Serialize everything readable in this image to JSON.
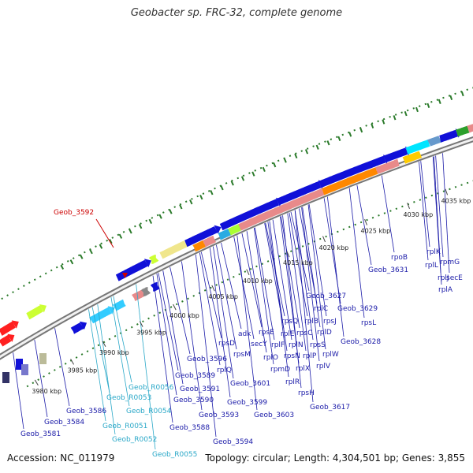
{
  "title": "Geobacter sp. FRC-32, complete genome",
  "accession": "Accession: NC_011979",
  "topology": "Topology: circular; Length: 4,304,501 bp; Genes: 3,855",
  "highlight_label": "Geob_3592",
  "colors": {
    "gene_label": "#1a1aa8",
    "rna_label": "#2aa8c8",
    "highlight": "#cc0000",
    "forward_gene": "#1010d8",
    "ribosomal": "#e88a8a",
    "rpo": "#ff8800",
    "backbone": "#888888",
    "dots": "#2a7a2a"
  },
  "ticks": [
    {
      "label": "3980 kbp"
    },
    {
      "label": "3985 kbp"
    },
    {
      "label": "3990 kbp"
    },
    {
      "label": "3995 kbp"
    },
    {
      "label": "4000 kbp"
    },
    {
      "label": "4005 kbp"
    },
    {
      "label": "4010 kbp"
    },
    {
      "label": "4015 kbp"
    },
    {
      "label": "4020 kbp"
    },
    {
      "label": "4025 kbp"
    },
    {
      "label": "4030 kbp"
    },
    {
      "label": "4035 kbp"
    }
  ],
  "labels": [
    {
      "text": "Geob_3581",
      "kind": "gene"
    },
    {
      "text": "Geob_3584",
      "kind": "gene"
    },
    {
      "text": "Geob_3586",
      "kind": "gene"
    },
    {
      "text": "Geob_R0051",
      "kind": "rna"
    },
    {
      "text": "Geob_R0052",
      "kind": "rna"
    },
    {
      "text": "Geob_R0053",
      "kind": "rna"
    },
    {
      "text": "Geob_R0054",
      "kind": "rna"
    },
    {
      "text": "Geob_R0055",
      "kind": "rna"
    },
    {
      "text": "Geob_R0056",
      "kind": "rna"
    },
    {
      "text": "Geob_3588",
      "kind": "gene"
    },
    {
      "text": "Geob_3589",
      "kind": "gene"
    },
    {
      "text": "Geob_3590",
      "kind": "gene"
    },
    {
      "text": "Geob_3591",
      "kind": "gene"
    },
    {
      "text": "Geob_3593",
      "kind": "gene"
    },
    {
      "text": "Geob_3594",
      "kind": "gene"
    },
    {
      "text": "Geob_3596",
      "kind": "gene"
    },
    {
      "text": "rpsD",
      "kind": "gene"
    },
    {
      "text": "rplQ",
      "kind": "gene"
    },
    {
      "text": "adk",
      "kind": "gene"
    },
    {
      "text": "rpsM",
      "kind": "gene"
    },
    {
      "text": "secY",
      "kind": "gene"
    },
    {
      "text": "Geob_3601",
      "kind": "gene"
    },
    {
      "text": "Geob_3599",
      "kind": "gene"
    },
    {
      "text": "Geob_3603",
      "kind": "gene"
    },
    {
      "text": "rpsE",
      "kind": "gene"
    },
    {
      "text": "rplF",
      "kind": "gene"
    },
    {
      "text": "rplO",
      "kind": "gene"
    },
    {
      "text": "rpmD",
      "kind": "gene"
    },
    {
      "text": "rplR",
      "kind": "gene"
    },
    {
      "text": "rpsH",
      "kind": "gene"
    },
    {
      "text": "rplE",
      "kind": "gene"
    },
    {
      "text": "rplN",
      "kind": "gene"
    },
    {
      "text": "rpsQ",
      "kind": "gene"
    },
    {
      "text": "rpsN",
      "kind": "gene"
    },
    {
      "text": "rplX",
      "kind": "gene"
    },
    {
      "text": "rpsC",
      "kind": "gene"
    },
    {
      "text": "rplP",
      "kind": "gene"
    },
    {
      "text": "rplB",
      "kind": "gene"
    },
    {
      "text": "rpsS",
      "kind": "gene"
    },
    {
      "text": "rplV",
      "kind": "gene"
    },
    {
      "text": "rplC",
      "kind": "gene"
    },
    {
      "text": "rplD",
      "kind": "gene"
    },
    {
      "text": "rplW",
      "kind": "gene"
    },
    {
      "text": "rpsJ",
      "kind": "gene"
    },
    {
      "text": "Geob_3617",
      "kind": "gene"
    },
    {
      "text": "Geob_3627",
      "kind": "gene"
    },
    {
      "text": "Geob_3629",
      "kind": "gene"
    },
    {
      "text": "rpsL",
      "kind": "gene"
    },
    {
      "text": "Geob_3628",
      "kind": "gene"
    },
    {
      "text": "Geob_3631",
      "kind": "gene"
    },
    {
      "text": "rpoB",
      "kind": "gene"
    },
    {
      "text": "rplL",
      "kind": "gene"
    },
    {
      "text": "rplK",
      "kind": "gene"
    },
    {
      "text": "rplJ",
      "kind": "gene"
    },
    {
      "text": "rpmG",
      "kind": "gene"
    },
    {
      "text": "secE",
      "kind": "gene"
    },
    {
      "text": "rplA",
      "kind": "gene"
    }
  ]
}
